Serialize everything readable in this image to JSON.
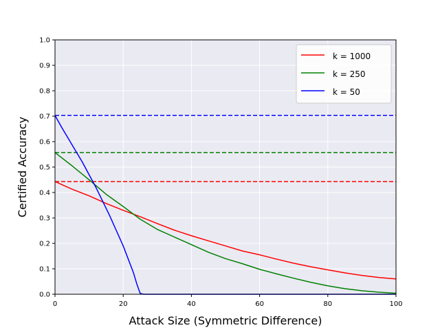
{
  "chart_data": {
    "type": "line",
    "xlabel": "Attack Size (Symmetric Difference)",
    "ylabel": "Certified Accuracy",
    "xlim": [
      0,
      100
    ],
    "ylim": [
      0,
      1.0
    ],
    "x_ticks": [
      "0",
      "20",
      "40",
      "60",
      "80",
      "100"
    ],
    "y_ticks": [
      "0.0",
      "0.1",
      "0.2",
      "0.3",
      "0.4",
      "0.5",
      "0.6",
      "0.7",
      "0.8",
      "0.9",
      "1.0"
    ],
    "grid": true,
    "legend_position": "top-right",
    "background_color": "#eaeaf2",
    "series": [
      {
        "name": "k = 1000",
        "color": "#ff0000",
        "baseline": 0.443,
        "points": [
          [
            0,
            0.443
          ],
          [
            5,
            0.413
          ],
          [
            10,
            0.387
          ],
          [
            15,
            0.357
          ],
          [
            20,
            0.33
          ],
          [
            25,
            0.305
          ],
          [
            30,
            0.278
          ],
          [
            35,
            0.252
          ],
          [
            40,
            0.23
          ],
          [
            45,
            0.21
          ],
          [
            50,
            0.19
          ],
          [
            55,
            0.17
          ],
          [
            60,
            0.155
          ],
          [
            65,
            0.138
          ],
          [
            70,
            0.122
          ],
          [
            75,
            0.108
          ],
          [
            80,
            0.096
          ],
          [
            85,
            0.084
          ],
          [
            90,
            0.074
          ],
          [
            95,
            0.066
          ],
          [
            100,
            0.06
          ]
        ]
      },
      {
        "name": "k = 250",
        "color": "#008000",
        "baseline": 0.557,
        "points": [
          [
            0,
            0.557
          ],
          [
            5,
            0.505
          ],
          [
            10,
            0.45
          ],
          [
            15,
            0.393
          ],
          [
            20,
            0.345
          ],
          [
            25,
            0.295
          ],
          [
            30,
            0.255
          ],
          [
            35,
            0.225
          ],
          [
            40,
            0.195
          ],
          [
            45,
            0.165
          ],
          [
            50,
            0.14
          ],
          [
            55,
            0.12
          ],
          [
            60,
            0.098
          ],
          [
            65,
            0.08
          ],
          [
            70,
            0.063
          ],
          [
            75,
            0.047
          ],
          [
            80,
            0.033
          ],
          [
            85,
            0.022
          ],
          [
            90,
            0.014
          ],
          [
            95,
            0.008
          ],
          [
            100,
            0.004
          ]
        ]
      },
      {
        "name": "k = 50",
        "color": "#0000ff",
        "baseline": 0.703,
        "points": [
          [
            0,
            0.703
          ],
          [
            2,
            0.655
          ],
          [
            4,
            0.61
          ],
          [
            6,
            0.565
          ],
          [
            8,
            0.52
          ],
          [
            10,
            0.47
          ],
          [
            12,
            0.42
          ],
          [
            14,
            0.365
          ],
          [
            16,
            0.31
          ],
          [
            18,
            0.25
          ],
          [
            20,
            0.19
          ],
          [
            22,
            0.12
          ],
          [
            23,
            0.085
          ],
          [
            24,
            0.04
          ],
          [
            25,
            0.003
          ],
          [
            26,
            0.0
          ],
          [
            100,
            0.0
          ]
        ]
      }
    ]
  }
}
